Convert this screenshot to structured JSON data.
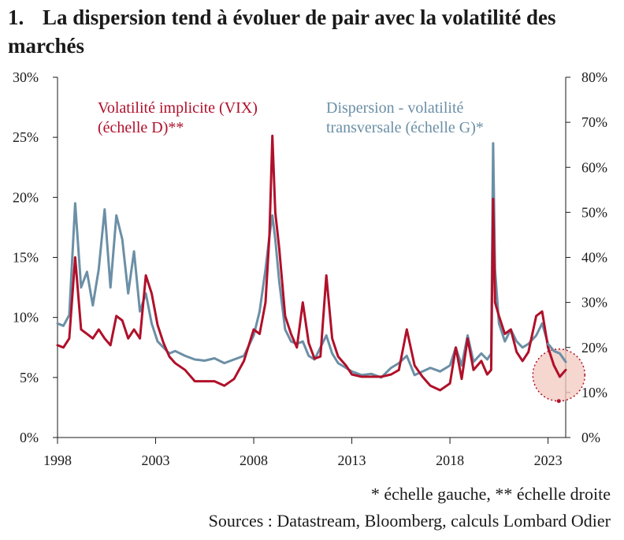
{
  "figure": {
    "number": "1.",
    "title": "La dispersion tend à évoluer de pair avec la volatilité des marchés",
    "footnote": "* échelle gauche, ** échelle droite",
    "sources": "Sources : Datastream, Bloomberg, calculs Lombard Odier"
  },
  "colors": {
    "vix": "#b0102a",
    "dispersion": "#6b8fa6",
    "highlight_fill": "#f2c9bf",
    "highlight_stroke": "#b0102a",
    "axis": "#1a1a1a"
  },
  "chart_data": {
    "type": "line",
    "title": "La dispersion tend à évoluer de pair avec la volatilité des marchés",
    "x_ticks": [
      "1998",
      "2003",
      "2008",
      "2013",
      "2018",
      "2023"
    ],
    "x_range": [
      1998,
      2023.9
    ],
    "y_left": {
      "range": [
        0,
        30
      ],
      "ticks": [
        "0%",
        "5%",
        "10%",
        "15%",
        "20%",
        "25%",
        "30%"
      ]
    },
    "y_right": {
      "range": [
        0,
        80
      ],
      "ticks": [
        "0%",
        "10%",
        "20%",
        "30%",
        "40%",
        "50%",
        "60%",
        "70%",
        "80%"
      ]
    },
    "grid": false,
    "annotations": [
      {
        "text": [
          "Volatilité implicite (VIX)",
          "(échelle D)**"
        ],
        "color": "#b0102a",
        "series": "vix"
      },
      {
        "text": [
          "Dispersion - volatilité",
          "transversale (échelle G)*"
        ],
        "color": "#6b8fa6",
        "series": "dispersion"
      }
    ],
    "highlight": {
      "x": 2023.55,
      "y_left": 5.2
    },
    "series": [
      {
        "key": "dispersion",
        "axis": "left",
        "x": [
          1998.0,
          1998.3,
          1998.6,
          1998.9,
          1999.2,
          1999.5,
          1999.8,
          2000.1,
          2000.4,
          2000.7,
          2001.0,
          2001.3,
          2001.6,
          2001.9,
          2002.2,
          2002.5,
          2002.8,
          2003.1,
          2003.4,
          2003.7,
          2004.0,
          2004.5,
          2005.0,
          2005.5,
          2006.0,
          2006.5,
          2007.0,
          2007.5,
          2008.0,
          2008.3,
          2008.6,
          2008.8,
          2008.95,
          2009.1,
          2009.3,
          2009.6,
          2009.9,
          2010.2,
          2010.5,
          2010.8,
          2011.1,
          2011.4,
          2011.7,
          2012.0,
          2012.3,
          2012.7,
          2013.0,
          2013.5,
          2014.0,
          2014.5,
          2015.0,
          2015.4,
          2015.8,
          2016.2,
          2016.6,
          2017.0,
          2017.5,
          2018.0,
          2018.3,
          2018.6,
          2018.9,
          2019.2,
          2019.6,
          2019.9,
          2020.1,
          2020.2,
          2020.3,
          2020.5,
          2020.8,
          2021.1,
          2021.4,
          2021.7,
          2022.0,
          2022.4,
          2022.7,
          2023.0,
          2023.3,
          2023.6,
          2023.9
        ],
        "y": [
          9.5,
          9.3,
          10.2,
          19.5,
          12.5,
          13.8,
          11.0,
          14.0,
          19.0,
          12.5,
          18.5,
          16.5,
          12.0,
          15.5,
          10.5,
          12.0,
          9.5,
          8.0,
          7.5,
          7.0,
          7.2,
          6.8,
          6.5,
          6.4,
          6.6,
          6.2,
          6.5,
          6.8,
          8.5,
          10.5,
          14.0,
          16.8,
          18.5,
          16.5,
          13.0,
          9.0,
          8.0,
          7.8,
          8.0,
          6.8,
          6.5,
          7.5,
          8.5,
          7.0,
          6.2,
          5.8,
          5.5,
          5.2,
          5.3,
          5.0,
          5.8,
          6.2,
          6.8,
          5.2,
          5.5,
          5.8,
          5.5,
          6.0,
          7.5,
          6.0,
          8.5,
          6.3,
          7.0,
          6.5,
          7.0,
          24.5,
          14.0,
          9.5,
          8.0,
          9.0,
          8.0,
          7.5,
          7.8,
          8.5,
          9.5,
          7.8,
          7.2,
          7.0,
          6.3
        ]
      },
      {
        "key": "vix",
        "axis": "right",
        "x": [
          1998.0,
          1998.3,
          1998.6,
          1998.9,
          1999.2,
          1999.5,
          1999.8,
          2000.1,
          2000.4,
          2000.7,
          2001.0,
          2001.3,
          2001.6,
          2001.9,
          2002.2,
          2002.5,
          2002.8,
          2003.1,
          2003.4,
          2003.7,
          2004.0,
          2004.5,
          2005.0,
          2005.5,
          2006.0,
          2006.5,
          2007.0,
          2007.5,
          2008.0,
          2008.3,
          2008.6,
          2008.8,
          2008.95,
          2009.1,
          2009.3,
          2009.6,
          2009.9,
          2010.2,
          2010.5,
          2010.8,
          2011.1,
          2011.4,
          2011.7,
          2012.0,
          2012.3,
          2012.7,
          2013.0,
          2013.5,
          2014.0,
          2014.5,
          2015.0,
          2015.4,
          2015.8,
          2016.2,
          2016.6,
          2017.0,
          2017.5,
          2018.0,
          2018.3,
          2018.6,
          2018.9,
          2019.2,
          2019.6,
          2019.9,
          2020.1,
          2020.2,
          2020.3,
          2020.5,
          2020.8,
          2021.1,
          2021.4,
          2021.7,
          2022.0,
          2022.4,
          2022.7,
          2023.0,
          2023.3,
          2023.6,
          2023.9
        ],
        "y": [
          20.5,
          20.0,
          22.0,
          40.0,
          24.0,
          23.0,
          22.0,
          24.0,
          22.0,
          20.5,
          27.0,
          26.0,
          22.0,
          24.0,
          22.0,
          36.0,
          32.0,
          25.0,
          21.0,
          18.0,
          16.5,
          15.0,
          12.5,
          12.5,
          12.5,
          11.5,
          13.0,
          17.0,
          24.0,
          23.0,
          30.0,
          45.0,
          67.0,
          50.0,
          42.0,
          27.0,
          23.0,
          20.0,
          30.0,
          21.0,
          17.5,
          18.0,
          36.0,
          22.0,
          18.0,
          16.0,
          14.0,
          13.5,
          13.5,
          13.5,
          14.0,
          15.0,
          24.0,
          16.0,
          13.5,
          11.5,
          10.5,
          12.0,
          20.0,
          13.0,
          22.0,
          15.0,
          17.0,
          14.0,
          15.0,
          53.0,
          30.0,
          27.0,
          23.0,
          24.0,
          19.0,
          17.0,
          19.0,
          27.0,
          28.0,
          20.0,
          16.0,
          13.5,
          15.0
        ]
      }
    ]
  }
}
